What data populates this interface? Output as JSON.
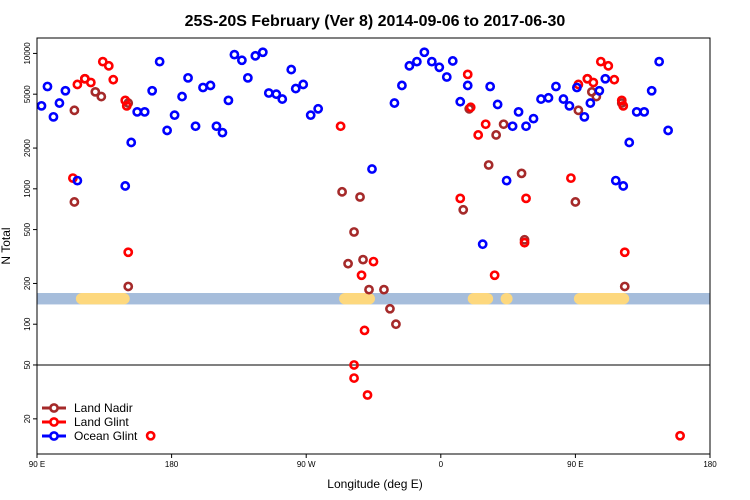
{
  "chart_data": {
    "type": "scatter",
    "title": "25S-20S February (Ver 8)   2014-09-06 to 2017-06-30",
    "xlabel": "Longitude (deg E)",
    "ylabel": "N Total",
    "y_scale": "log",
    "ylim": [
      11,
      13000
    ],
    "x_ticks": [
      {
        "value": 90,
        "label": "90 E"
      },
      {
        "value": 180,
        "label": "180"
      },
      {
        "value": 270,
        "label": "90 W"
      },
      {
        "value": 360,
        "label": "0"
      },
      {
        "value": 450,
        "label": "90 E"
      },
      {
        "value": 540,
        "label": "180"
      }
    ],
    "y_ticks": [
      20,
      50,
      100,
      200,
      500,
      1000,
      2000,
      5000,
      10000
    ],
    "xlim": [
      90,
      540
    ],
    "reference_line": 50,
    "legend_position": "bottom-left",
    "series": [
      {
        "name": "Land Nadir",
        "color": "#a52a2a",
        "points": [
          [
            115,
            800
          ],
          [
            115,
            3800
          ],
          [
            122,
            6500
          ],
          [
            129,
            5200
          ],
          [
            133,
            4800
          ],
          [
            151,
            4300
          ],
          [
            151,
            190
          ],
          [
            294,
            950
          ],
          [
            298,
            280
          ],
          [
            302,
            480
          ],
          [
            306,
            870
          ],
          [
            308,
            300
          ],
          [
            312,
            180
          ],
          [
            322,
            180
          ],
          [
            326,
            130
          ],
          [
            330,
            100
          ],
          [
            375,
            700
          ],
          [
            379,
            3900
          ],
          [
            392,
            1500
          ],
          [
            397,
            2500
          ],
          [
            402,
            3000
          ],
          [
            414,
            1300
          ],
          [
            416,
            420
          ],
          [
            450,
            800
          ],
          [
            452,
            3800
          ],
          [
            458,
            6500
          ],
          [
            461,
            5200
          ],
          [
            464,
            4800
          ],
          [
            481,
            4300
          ],
          [
            483,
            190
          ]
        ]
      },
      {
        "name": "Land Glint",
        "color": "#ff0000",
        "points": [
          [
            114,
            1200
          ],
          [
            117,
            5900
          ],
          [
            122,
            6500
          ],
          [
            126,
            6100
          ],
          [
            134,
            8700
          ],
          [
            138,
            8100
          ],
          [
            141,
            6400
          ],
          [
            149,
            4500
          ],
          [
            150,
            4100
          ],
          [
            151,
            340
          ],
          [
            166,
            15
          ],
          [
            293,
            2900
          ],
          [
            302,
            50
          ],
          [
            302,
            40
          ],
          [
            307,
            230
          ],
          [
            309,
            90
          ],
          [
            311,
            30
          ],
          [
            315,
            290
          ],
          [
            373,
            850
          ],
          [
            378,
            7000
          ],
          [
            380,
            4000
          ],
          [
            385,
            2500
          ],
          [
            390,
            3000
          ],
          [
            396,
            230
          ],
          [
            416,
            400
          ],
          [
            417,
            850
          ],
          [
            447,
            1200
          ],
          [
            452,
            5900
          ],
          [
            458,
            6500
          ],
          [
            462,
            6100
          ],
          [
            467,
            8700
          ],
          [
            472,
            8100
          ],
          [
            476,
            6400
          ],
          [
            481,
            4500
          ],
          [
            482,
            4100
          ],
          [
            483,
            340
          ],
          [
            520,
            15
          ]
        ]
      },
      {
        "name": "Ocean Glint",
        "color": "#0000ff",
        "points": [
          [
            93,
            4100
          ],
          [
            97,
            5700
          ],
          [
            101,
            3400
          ],
          [
            105,
            4300
          ],
          [
            109,
            5300
          ],
          [
            117,
            1150
          ],
          [
            149,
            1050
          ],
          [
            153,
            2200
          ],
          [
            157,
            3700
          ],
          [
            162,
            3700
          ],
          [
            167,
            5300
          ],
          [
            172,
            8700
          ],
          [
            177,
            2700
          ],
          [
            182,
            3500
          ],
          [
            187,
            4800
          ],
          [
            191,
            6600
          ],
          [
            196,
            2900
          ],
          [
            201,
            5600
          ],
          [
            206,
            5800
          ],
          [
            210,
            2900
          ],
          [
            214,
            2600
          ],
          [
            218,
            4500
          ],
          [
            222,
            9800
          ],
          [
            227,
            8900
          ],
          [
            231,
            6600
          ],
          [
            236,
            9600
          ],
          [
            241,
            10200
          ],
          [
            245,
            5100
          ],
          [
            250,
            5000
          ],
          [
            254,
            4600
          ],
          [
            260,
            7600
          ],
          [
            263,
            5500
          ],
          [
            268,
            5900
          ],
          [
            273,
            3500
          ],
          [
            278,
            3900
          ],
          [
            314,
            1400
          ],
          [
            329,
            4300
          ],
          [
            334,
            5800
          ],
          [
            339,
            8100
          ],
          [
            344,
            8700
          ],
          [
            349,
            10200
          ],
          [
            354,
            8700
          ],
          [
            359,
            7900
          ],
          [
            364,
            6700
          ],
          [
            368,
            8800
          ],
          [
            373,
            4400
          ],
          [
            378,
            5800
          ],
          [
            388,
            390
          ],
          [
            393,
            5700
          ],
          [
            398,
            4200
          ],
          [
            404,
            1150
          ],
          [
            408,
            2900
          ],
          [
            412,
            3700
          ],
          [
            417,
            2900
          ],
          [
            422,
            3300
          ],
          [
            427,
            4600
          ],
          [
            432,
            4700
          ],
          [
            437,
            5700
          ],
          [
            442,
            4600
          ],
          [
            446,
            4100
          ],
          [
            451,
            5600
          ],
          [
            456,
            3400
          ],
          [
            460,
            4300
          ],
          [
            466,
            5300
          ],
          [
            470,
            6500
          ],
          [
            477,
            1150
          ],
          [
            482,
            1050
          ],
          [
            486,
            2200
          ],
          [
            491,
            3700
          ],
          [
            496,
            3700
          ],
          [
            501,
            5300
          ],
          [
            506,
            8700
          ],
          [
            512,
            2700
          ]
        ]
      }
    ],
    "band": {
      "y_bottom": 140,
      "y_top": 170,
      "ocean_color": "#a6bddb",
      "land_color": "#fdd87e",
      "land_ranges": [
        [
          116,
          152
        ],
        [
          292,
          316
        ],
        [
          378,
          395
        ],
        [
          400,
          408
        ],
        [
          449,
          486
        ]
      ]
    }
  }
}
